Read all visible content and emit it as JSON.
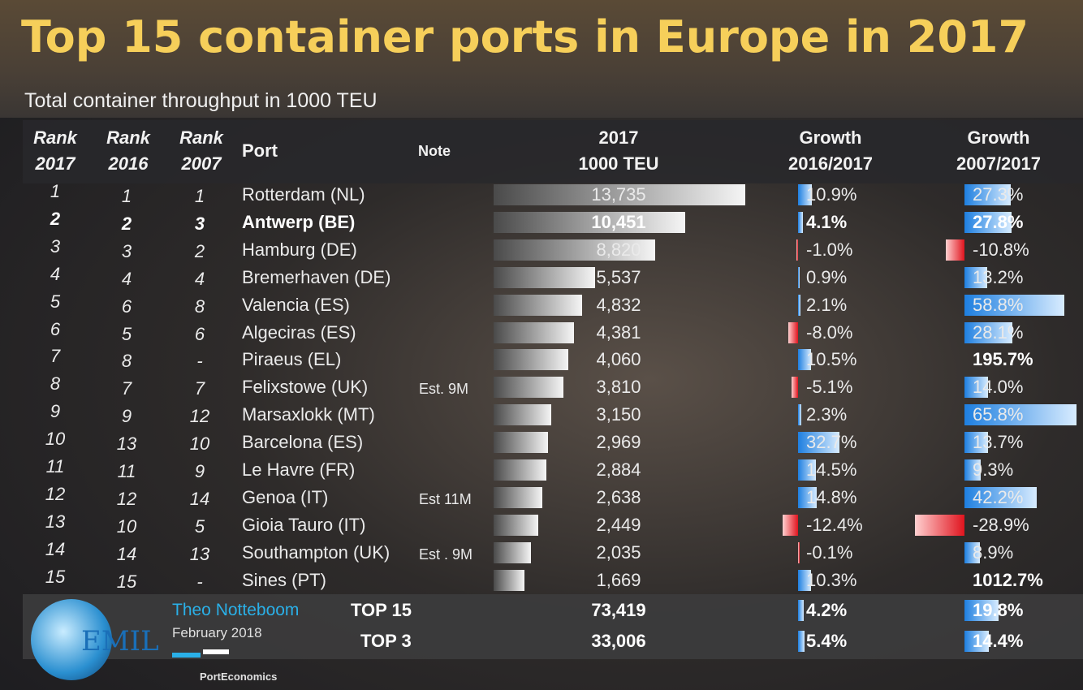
{
  "title": "Top 15 container ports in Europe in 2017",
  "subtitle": "Total container throughput in 1000 TEU",
  "header": {
    "rank2017": [
      "Rank",
      "2017"
    ],
    "rank2016": [
      "Rank",
      "2016"
    ],
    "rank2007": [
      "Rank",
      "2007"
    ],
    "port": "Port",
    "note": "Note",
    "teu": [
      "2017",
      "1000 TEU"
    ],
    "g16": [
      "Growth",
      "2016/2017"
    ],
    "g07": [
      "Growth",
      "2007/2017"
    ]
  },
  "rows": [
    {
      "rank2017": "1",
      "rank2016": "1",
      "rank2007": "1",
      "port": "Rotterdam (NL)",
      "teu": "13,735",
      "g16": "10.9%",
      "g07": "27.3%"
    },
    {
      "rank2017": "2",
      "rank2016": "2",
      "rank2007": "3",
      "port": "Antwerp (BE)",
      "teu": "10,451",
      "g16": "4.1%",
      "g07": "27.8%",
      "bold": true
    },
    {
      "rank2017": "3",
      "rank2016": "3",
      "rank2007": "2",
      "port": "Hamburg (DE)",
      "teu": "8,820",
      "g16": "-1.0%",
      "g07": "-10.8%"
    },
    {
      "rank2017": "4",
      "rank2016": "4",
      "rank2007": "4",
      "port": "Bremerhaven (DE)",
      "teu": "5,537",
      "g16": "0.9%",
      "g07": "13.2%"
    },
    {
      "rank2017": "5",
      "rank2016": "6",
      "rank2007": "8",
      "port": "Valencia (ES)",
      "teu": "4,832",
      "g16": "2.1%",
      "g07": "58.8%"
    },
    {
      "rank2017": "6",
      "rank2016": "5",
      "rank2007": "6",
      "port": "Algeciras (ES)",
      "teu": "4,381",
      "g16": "-8.0%",
      "g07": "28.1%"
    },
    {
      "rank2017": "7",
      "rank2016": "8",
      "rank2007": "-",
      "port": "Piraeus (EL)",
      "teu": "4,060",
      "g16": "10.5%",
      "g07": "195.7%",
      "g07_bold": true
    },
    {
      "rank2017": "8",
      "rank2016": "7",
      "rank2007": "7",
      "port": "Felixstowe (UK)",
      "note": "Est. 9M",
      "teu": "3,810",
      "g16": "-5.1%",
      "g07": "14.0%"
    },
    {
      "rank2017": "9",
      "rank2016": "9",
      "rank2007": "12",
      "port": "Marsaxlokk (MT)",
      "teu": "3,150",
      "g16": "2.3%",
      "g07": "65.8%"
    },
    {
      "rank2017": "10",
      "rank2016": "13",
      "rank2007": "10",
      "port": "Barcelona (ES)",
      "teu": "2,969",
      "g16": "32.7%",
      "g07": "13.7%"
    },
    {
      "rank2017": "11",
      "rank2016": "11",
      "rank2007": "9",
      "port": "Le Havre (FR)",
      "teu": "2,884",
      "g16": "14.5%",
      "g07": "9.3%"
    },
    {
      "rank2017": "12",
      "rank2016": "12",
      "rank2007": "14",
      "port": "Genoa (IT)",
      "note": "Est 11M",
      "teu": "2,638",
      "g16": "14.8%",
      "g07": "42.2%"
    },
    {
      "rank2017": "13",
      "rank2016": "10",
      "rank2007": "5",
      "port": "Gioia Tauro (IT)",
      "teu": "2,449",
      "g16": "-12.4%",
      "g07": "-28.9%"
    },
    {
      "rank2017": "14",
      "rank2016": "14",
      "rank2007": "13",
      "port": "Southampton (UK)",
      "note": "Est . 9M",
      "teu": "2,035",
      "g16": "-0.1%",
      "g07": "8.9%"
    },
    {
      "rank2017": "15",
      "rank2016": "15",
      "rank2007": "-",
      "port": "Sines (PT)",
      "teu": "1,669",
      "g16": "10.3%",
      "g07": "1012.7%",
      "g07_bold": true
    }
  ],
  "totals": [
    {
      "label": "TOP 15",
      "teu": "73,419",
      "g16": "4.2%",
      "g07": "19.8%"
    },
    {
      "label": "TOP 3",
      "teu": "33,006",
      "g16": "5.4%",
      "g07": "14.4%"
    }
  ],
  "footer": {
    "logo": "EMIL",
    "author": "Theo Notteboom",
    "date": "February 2018",
    "brand": "PortEconomics"
  }
}
